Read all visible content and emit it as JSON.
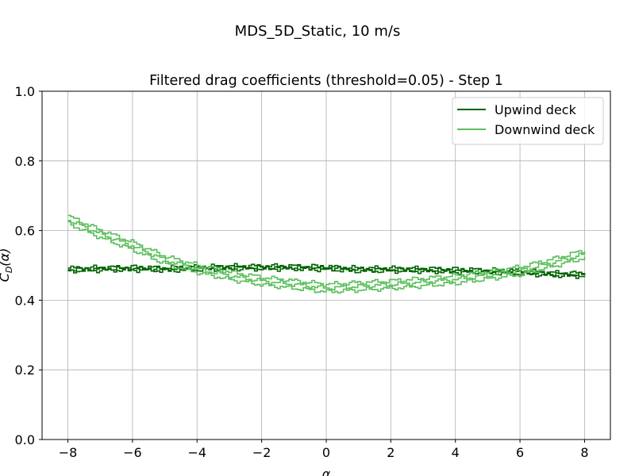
{
  "figure": {
    "suptitle": "MDS_5D_Static, 10 m/s"
  },
  "chart_data": {
    "type": "line",
    "title": "Filtered drag coefficients (threshold=0.05) - Step 1",
    "xlabel": "α",
    "ylabel": "C_D(α)",
    "xlim": [
      -8.8,
      8.8
    ],
    "ylim": [
      0,
      1.0
    ],
    "xticks": [
      -8,
      -6,
      -4,
      -2,
      0,
      2,
      4,
      6,
      8
    ],
    "xtick_labels": [
      "−8",
      "−6",
      "−4",
      "−2",
      "0",
      "2",
      "4",
      "6",
      "8"
    ],
    "yticks": [
      0.0,
      0.2,
      0.4,
      0.6,
      0.8,
      1.0
    ],
    "ytick_labels": [
      "0.0",
      "0.2",
      "0.4",
      "0.6",
      "0.8",
      "1.0"
    ],
    "grid": true,
    "legend_position": "top-right",
    "series": [
      {
        "name": "Upwind deck",
        "color": "#006400",
        "x": [
          -8,
          -7,
          -6,
          -5,
          -4,
          -3,
          -2,
          -1,
          0,
          1,
          2,
          3,
          4,
          5,
          6,
          7,
          8
        ],
        "y": [
          0.488,
          0.49,
          0.491,
          0.489,
          0.492,
          0.494,
          0.494,
          0.494,
          0.492,
          0.488,
          0.488,
          0.487,
          0.485,
          0.483,
          0.48,
          0.475,
          0.473
        ]
      },
      {
        "name": "Downwind deck",
        "color": "#5cbf5c",
        "x": [
          -8,
          -7,
          -6,
          -5,
          -4,
          -3,
          -2,
          -1,
          0,
          1,
          2,
          3,
          4,
          5,
          6,
          7,
          8
        ],
        "y": [
          0.63,
          0.59,
          0.555,
          0.515,
          0.49,
          0.47,
          0.455,
          0.445,
          0.435,
          0.44,
          0.445,
          0.452,
          0.46,
          0.472,
          0.485,
          0.508,
          0.533
        ]
      }
    ]
  }
}
